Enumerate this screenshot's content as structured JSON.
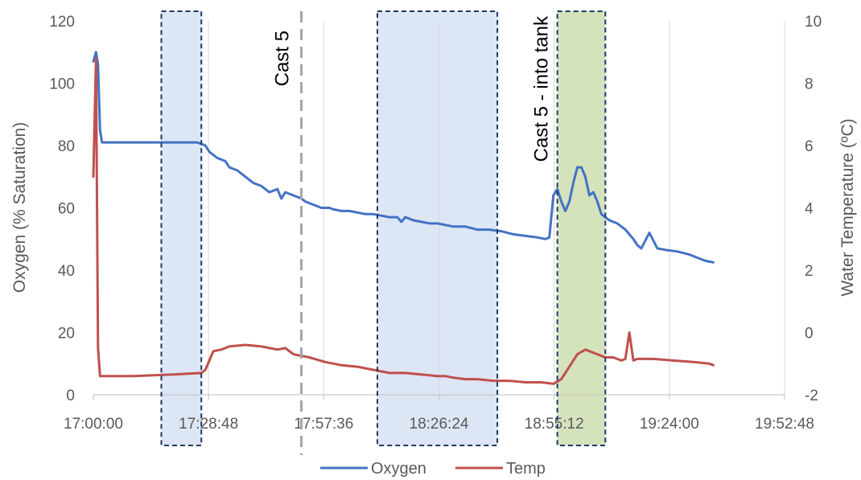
{
  "chart_data": {
    "type": "line",
    "xlabel": "",
    "ylabel": "Oxygen (% Saturation)",
    "y2label": "Water Temperature (ºC)",
    "x_ticks": [
      "17:00:00",
      "17:28:48",
      "17:57:36",
      "18:26:24",
      "18:55:12",
      "19:24:00",
      "19:52:48"
    ],
    "xlim": [
      "17:00:00",
      "19:52:48"
    ],
    "ylim": [
      0,
      120
    ],
    "y_ticks": [
      0,
      20,
      40,
      60,
      80,
      100,
      120
    ],
    "y2lim": [
      -2,
      10
    ],
    "y2_ticks": [
      -2,
      0,
      2,
      4,
      6,
      8,
      10
    ],
    "grid": "vertical",
    "legend_position": "bottom",
    "series": [
      {
        "name": "Oxygen",
        "axis": "left",
        "color": "#4472C4",
        "x": [
          "17:00:00",
          "17:00:40",
          "17:01:10",
          "17:01:40",
          "17:02:10",
          "17:03:00",
          "17:06:00",
          "17:12:00",
          "17:20:00",
          "17:26:00",
          "17:28:00",
          "17:29:00",
          "17:31:00",
          "17:33:00",
          "17:34:00",
          "17:36:00",
          "17:38:00",
          "17:40:00",
          "17:42:00",
          "17:44:00",
          "17:46:00",
          "17:47:00",
          "17:48:00",
          "17:50:00",
          "17:52:00",
          "17:53:00",
          "17:55:00",
          "17:57:00",
          "17:59:00",
          "18:00:00",
          "18:02:00",
          "18:04:00",
          "18:06:00",
          "18:08:00",
          "18:10:00",
          "18:12:00",
          "18:14:00",
          "18:16:00",
          "18:17:00",
          "18:18:00",
          "18:20:00",
          "18:22:00",
          "18:24:00",
          "18:26:00",
          "18:28:00",
          "18:30:00",
          "18:33:00",
          "18:36:00",
          "18:39:00",
          "18:42:00",
          "18:45:00",
          "18:48:00",
          "18:51:00",
          "18:53:00",
          "18:54:00",
          "18:55:00",
          "18:56:00",
          "18:57:00",
          "18:58:00",
          "18:59:00",
          "19:00:00",
          "19:01:00",
          "19:02:00",
          "19:03:00",
          "19:04:00",
          "19:05:00",
          "19:06:00",
          "19:07:00",
          "19:09:00",
          "19:11:00",
          "19:13:00",
          "19:15:00",
          "19:16:00",
          "19:17:00",
          "19:19:00",
          "19:21:00",
          "19:23:00",
          "19:26:00",
          "19:29:00",
          "19:31:00",
          "19:33:00",
          "19:35:00"
        ],
        "values": [
          107,
          110,
          106,
          85,
          81,
          81,
          81,
          81,
          81,
          81,
          80,
          78,
          76,
          75,
          73,
          72,
          70,
          68,
          67,
          65,
          66,
          63,
          65,
          64,
          63,
          62,
          61,
          60,
          60,
          59.5,
          59,
          59,
          58.5,
          58,
          58,
          57.5,
          57,
          57,
          55.5,
          57,
          56,
          55.5,
          55,
          55,
          54.5,
          54,
          54,
          53,
          53,
          52.5,
          51.5,
          51,
          50.5,
          50,
          50.5,
          64,
          66,
          62,
          59,
          62,
          68,
          73,
          73,
          70,
          64,
          65,
          62,
          58,
          56,
          55,
          53,
          50,
          48,
          47,
          52,
          47,
          46.5,
          46,
          45,
          44,
          43,
          42.5
        ]
      },
      {
        "name": "Temp",
        "axis": "right",
        "color": "#C0504D",
        "x": [
          "17:00:00",
          "17:00:40",
          "17:01:10",
          "17:01:40",
          "17:02:10",
          "17:04:00",
          "17:10:00",
          "17:20:00",
          "17:27:00",
          "17:28:00",
          "17:29:00",
          "17:30:00",
          "17:32:00",
          "17:34:00",
          "17:38:00",
          "17:42:00",
          "17:46:00",
          "17:48:00",
          "17:50:00",
          "17:54:00",
          "17:58:00",
          "18:02:00",
          "18:06:00",
          "18:10:00",
          "18:14:00",
          "18:18:00",
          "18:22:00",
          "18:26:00",
          "18:28:00",
          "18:30:00",
          "18:33:00",
          "18:36:00",
          "18:40:00",
          "18:44:00",
          "18:48:00",
          "18:52:00",
          "18:55:00",
          "18:57:00",
          "18:59:00",
          "19:01:00",
          "19:03:00",
          "19:05:00",
          "19:06:00",
          "19:08:00",
          "19:10:00",
          "19:12:00",
          "19:13:00",
          "19:14:00",
          "19:15:00",
          "19:16:00",
          "19:20:00",
          "19:25:00",
          "19:30:00",
          "19:34:00",
          "19:35:00"
        ],
        "values": [
          5,
          8.8,
          -0.5,
          -1.4,
          -1.4,
          -1.4,
          -1.4,
          -1.35,
          -1.3,
          -1.2,
          -0.9,
          -0.6,
          -0.55,
          -0.45,
          -0.4,
          -0.45,
          -0.55,
          -0.5,
          -0.7,
          -0.8,
          -0.95,
          -1.05,
          -1.1,
          -1.2,
          -1.3,
          -1.3,
          -1.35,
          -1.4,
          -1.4,
          -1.45,
          -1.5,
          -1.5,
          -1.55,
          -1.55,
          -1.6,
          -1.6,
          -1.65,
          -1.5,
          -1.1,
          -0.7,
          -0.55,
          -0.65,
          -0.7,
          -0.8,
          -0.8,
          -0.9,
          -0.85,
          0,
          -0.9,
          -0.85,
          -0.85,
          -0.9,
          -0.95,
          -1.0,
          -1.05
        ]
      }
    ],
    "annotations": [
      {
        "label": "Cast 5",
        "x": "17:52:00",
        "style": "dashed-vertical-line"
      },
      {
        "label": "Cast 5 - into tank",
        "x": "18:55:12",
        "style": "text"
      }
    ],
    "shaded_regions": [
      {
        "x_start": "17:17:00",
        "x_end": "17:27:00",
        "fill": "#DDE6F4"
      },
      {
        "x_start": "18:11:00",
        "x_end": "18:41:00",
        "fill": "#DDE6F4"
      },
      {
        "x_start": "18:56:00",
        "x_end": "19:08:00",
        "fill": "#D5E3BC"
      }
    ]
  }
}
